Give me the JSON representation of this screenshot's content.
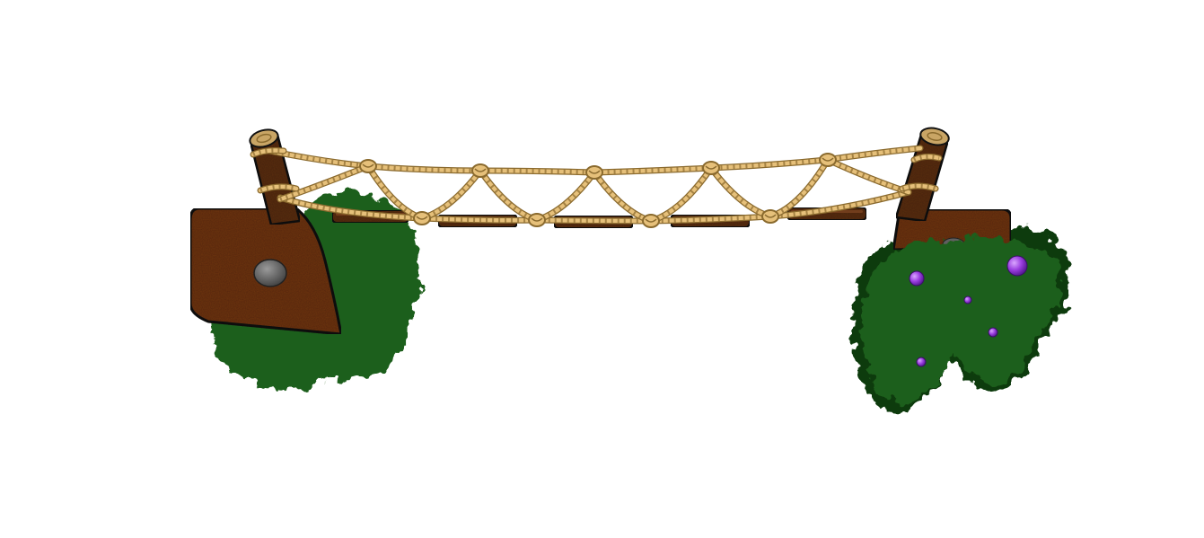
{
  "scene": {
    "subject": "rope-bridge-sprite",
    "plank_count": 5,
    "knot_count_top": 5,
    "knot_count_bottom": 4,
    "berry_count": 5
  },
  "colors": {
    "background": "#ffffff",
    "rope": "#e6c07a",
    "rope_dark": "#8a6a2e",
    "wood": "#5a2e12",
    "wood_light": "#7a4320",
    "dirt": "#6e3410",
    "dirt_dark": "#3d1a06",
    "bush": "#1f5e1a",
    "bush_dark": "#0f3a0c",
    "bush_light": "#2f7a26",
    "berry": "#9b3fe0",
    "rock": "#5f5f5f",
    "outline": "#111111"
  }
}
